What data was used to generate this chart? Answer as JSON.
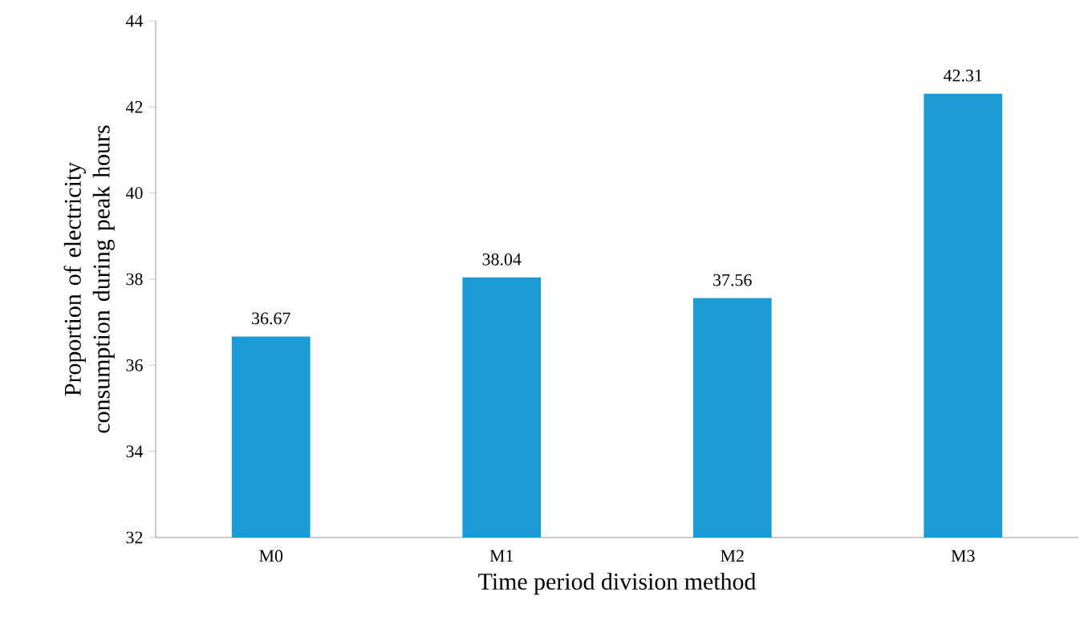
{
  "chart_data": {
    "type": "bar",
    "xlabel": "Time period division method",
    "ylabel": "Proportion of electricity consumption during peak hours",
    "categories": [
      "M0",
      "M1",
      "M2",
      "M3"
    ],
    "values": [
      36.67,
      38.04,
      37.56,
      42.31
    ],
    "color": "#1b9ad6",
    "ylim": [
      32,
      44
    ],
    "yticks": [
      32,
      34,
      36,
      38,
      40,
      42,
      44
    ],
    "data_labels": true
  }
}
